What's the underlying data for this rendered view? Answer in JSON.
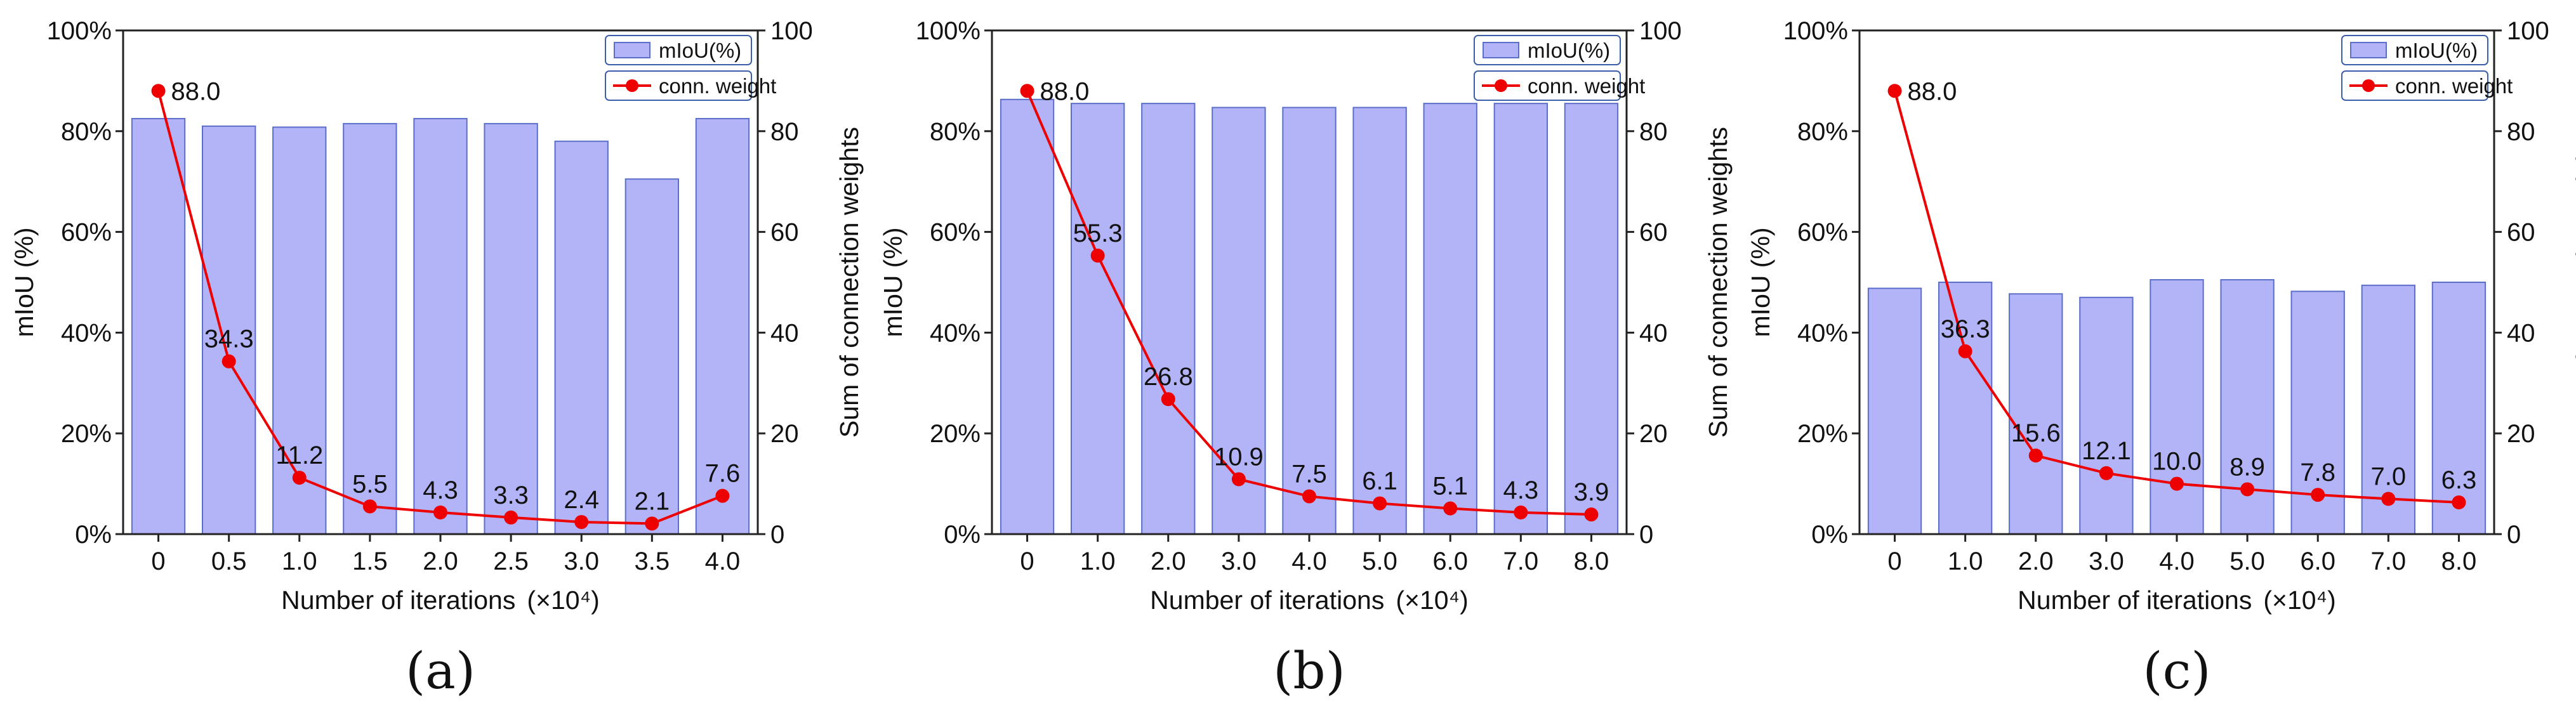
{
  "chart_data": [
    {
      "type": "bar+line",
      "caption": "(a)",
      "categories": [
        "0",
        "0.5",
        "1.0",
        "1.5",
        "2.0",
        "2.5",
        "3.0",
        "3.5",
        "4.0"
      ],
      "series": [
        {
          "name": "mIoU(%)",
          "kind": "bar",
          "axis": "left",
          "values": [
            82.5,
            81.0,
            80.8,
            81.5,
            82.5,
            81.5,
            78.0,
            70.5,
            82.5
          ]
        },
        {
          "name": "conn. weight",
          "kind": "line",
          "axis": "right",
          "values": [
            88.0,
            34.3,
            11.2,
            5.5,
            4.3,
            3.3,
            2.4,
            2.1,
            7.6
          ],
          "labels": [
            "88.0",
            "34.3",
            "11.2",
            "5.5",
            "4.3",
            "3.3",
            "2.4",
            "2.1",
            "7.6"
          ]
        }
      ],
      "xlabel": "Number of iterations",
      "xlabel_unit": "×10⁴",
      "ylabel": "mIoU (%)",
      "y2label": "Sum of connection weights",
      "ylim": [
        0,
        100
      ],
      "y2lim": [
        0,
        100
      ],
      "yticks": [
        "0%",
        "20%",
        "40%",
        "60%",
        "80%",
        "100%"
      ],
      "y2ticks": [
        "0",
        "20",
        "40",
        "60",
        "80",
        "100"
      ],
      "legend": "top-right"
    },
    {
      "type": "bar+line",
      "caption": "(b)",
      "categories": [
        "0",
        "1.0",
        "2.0",
        "3.0",
        "4.0",
        "5.0",
        "6.0",
        "7.0",
        "8.0"
      ],
      "series": [
        {
          "name": "mIoU(%)",
          "kind": "bar",
          "axis": "left",
          "values": [
            86.3,
            85.5,
            85.5,
            84.7,
            84.7,
            84.7,
            85.5,
            85.5,
            85.5
          ]
        },
        {
          "name": "conn. weight",
          "kind": "line",
          "axis": "right",
          "values": [
            88.0,
            55.3,
            26.8,
            10.9,
            7.5,
            6.1,
            5.1,
            4.3,
            3.9
          ],
          "labels": [
            "88.0",
            "55.3",
            "26.8",
            "10.9",
            "7.5",
            "6.1",
            "5.1",
            "4.3",
            "3.9"
          ]
        }
      ],
      "xlabel": "Number of iterations",
      "xlabel_unit": "×10⁴",
      "ylabel": "mIoU (%)",
      "y2label": "Sum of connection weights",
      "ylim": [
        0,
        100
      ],
      "y2lim": [
        0,
        100
      ],
      "yticks": [
        "0%",
        "20%",
        "40%",
        "60%",
        "80%",
        "100%"
      ],
      "y2ticks": [
        "0",
        "20",
        "40",
        "60",
        "80",
        "100"
      ],
      "legend": "top-right"
    },
    {
      "type": "bar+line",
      "caption": "(c)",
      "categories": [
        "0",
        "1.0",
        "2.0",
        "3.0",
        "4.0",
        "5.0",
        "6.0",
        "7.0",
        "8.0"
      ],
      "series": [
        {
          "name": "mIoU(%)",
          "kind": "bar",
          "axis": "left",
          "values": [
            48.8,
            50.0,
            47.7,
            47.0,
            50.5,
            50.5,
            48.2,
            49.4,
            50.0
          ]
        },
        {
          "name": "conn. weight",
          "kind": "line",
          "axis": "right",
          "values": [
            88.0,
            36.3,
            15.6,
            12.1,
            10.0,
            8.9,
            7.8,
            7.0,
            6.3
          ],
          "labels": [
            "88.0",
            "36.3",
            "15.6",
            "12.1",
            "10.0",
            "8.9",
            "7.8",
            "7.0",
            "6.3"
          ]
        }
      ],
      "xlabel": "Number of iterations",
      "xlabel_unit": "×10⁴",
      "ylabel": "mIoU (%)",
      "y2label": "Sum of connection weights",
      "ylim": [
        0,
        100
      ],
      "y2lim": [
        0,
        100
      ],
      "yticks": [
        "0%",
        "20%",
        "40%",
        "60%",
        "80%",
        "100%"
      ],
      "y2ticks": [
        "0",
        "20",
        "40",
        "60",
        "80",
        "100"
      ],
      "legend": "top-right"
    }
  ],
  "colors": {
    "bar_fill": "#b3b3f7",
    "bar_edge": "#5b6fc9",
    "line": "#ee0000",
    "axis": "#222222",
    "legend_edge": "#3a5fa8"
  }
}
